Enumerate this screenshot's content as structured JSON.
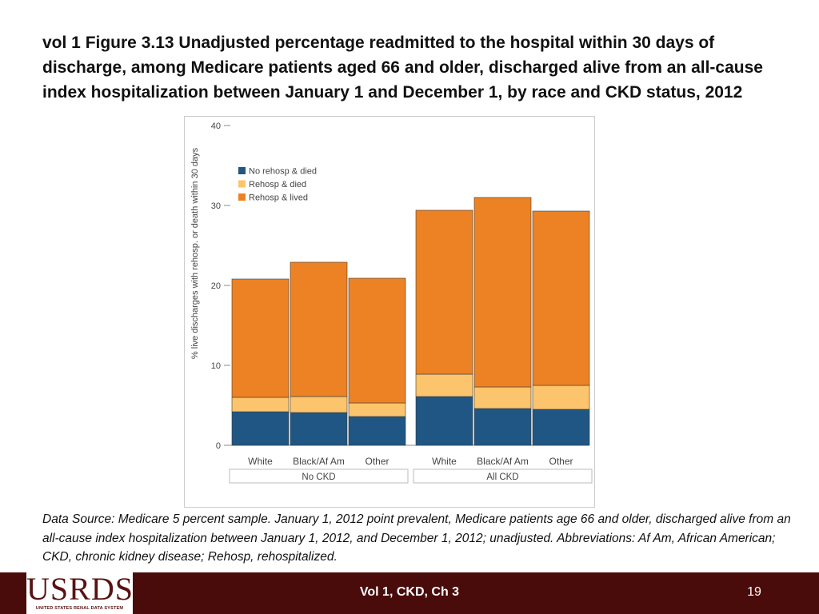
{
  "slide": {
    "title": "vol 1 Figure 3.13  Unadjusted percentage readmitted to the hospital within 30 days of discharge, among Medicare patients aged 66 and older, discharged alive from an all-cause index hospitalization between January 1 and December 1, by race and CKD status, 2012",
    "source_note": "Data Source: Medicare 5 percent sample. January 1, 2012 point prevalent, Medicare patients age 66 and older, discharged alive from an all-cause index hospitalization between January 1, 2012, and December 1, 2012; unadjusted. Abbreviations: Af Am, African American; CKD, chronic kidney disease; Rehosp, rehospitalized.",
    "footer_center": "Vol 1, CKD, Ch 3",
    "page_number": "19",
    "logo_text": "USRDS",
    "logo_subtext": "UNITED STATES RENAL DATA SYSTEM"
  },
  "colors": {
    "no_rehosp_died": "#1f5683",
    "rehosp_died": "#fcc46c",
    "rehosp_lived": "#ec8224",
    "axis": "#888888",
    "frame": "#cccccc",
    "footer_bg": "#4a0b0b"
  },
  "chart_data": {
    "type": "bar",
    "stacked": true,
    "title": "",
    "xlabel": "",
    "ylabel": "% live discharges with rehosp. or death within 30 days",
    "ylim": [
      0,
      40
    ],
    "yticks": [
      0,
      10,
      20,
      30,
      40
    ],
    "groups": [
      {
        "name": "No CKD",
        "categories": [
          "White",
          "Black/Af Am",
          "Other"
        ]
      },
      {
        "name": "All CKD",
        "categories": [
          "White",
          "Black/Af Am",
          "Other"
        ]
      }
    ],
    "series": [
      {
        "name": "No rehosp & died",
        "values": [
          4.2,
          4.1,
          3.6,
          6.1,
          4.6,
          4.5
        ]
      },
      {
        "name": "Rehosp & died",
        "values": [
          1.8,
          2.0,
          1.7,
          2.8,
          2.7,
          3.0
        ]
      },
      {
        "name": "Rehosp & lived",
        "values": [
          14.8,
          16.8,
          15.6,
          20.5,
          23.7,
          21.8
        ]
      }
    ],
    "legend": [
      "No rehosp & died",
      "Rehosp & died",
      "Rehosp & lived"
    ],
    "legend_position": "top-left",
    "grid": false
  }
}
